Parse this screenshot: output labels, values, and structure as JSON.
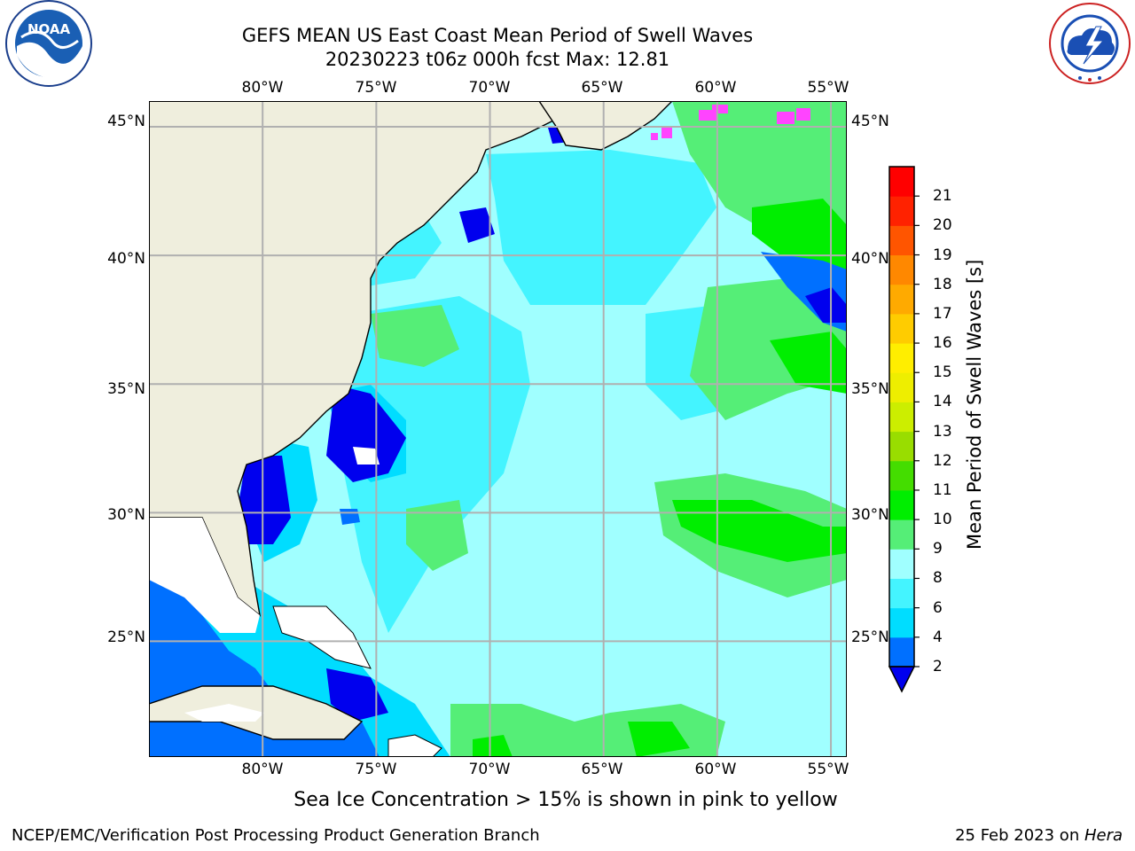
{
  "title": {
    "line1": "GEFS MEAN US East Coast Mean Period of Swell Waves",
    "line2": "20230223 t06z 000h fcst   Max: 12.81"
  },
  "map": {
    "lon_labels": [
      "80°W",
      "75°W",
      "70°W",
      "65°W",
      "60°W",
      "55°W"
    ],
    "lat_labels": [
      "45°N",
      "40°N",
      "35°N",
      "30°N",
      "25°N"
    ],
    "extent": {
      "lon": [
        -85,
        -54.3
      ],
      "lat": [
        20.5,
        46
      ]
    },
    "colors": {
      "land": "#efeedd",
      "grid": "#b0b0b0",
      "coast": "#000000",
      "nodata": "#ffffff"
    }
  },
  "colorbar": {
    "label": "Mean Period of Swell Waves [s]",
    "ticks": [
      "2",
      "4",
      "6",
      "8",
      "9",
      "10",
      "11",
      "12",
      "13",
      "14",
      "15",
      "16",
      "17",
      "18",
      "19",
      "20",
      "21"
    ],
    "colors": [
      "#0000ee",
      "#0070ff",
      "#00ddff",
      "#44f4ff",
      "#a0ffff",
      "#55ee77",
      "#00ee00",
      "#44dd00",
      "#99dd00",
      "#ccee00",
      "#eeee00",
      "#ffee00",
      "#ffcc00",
      "#ffaa00",
      "#ff8800",
      "#ff5500",
      "#ff2200",
      "#ff0000"
    ]
  },
  "sea_ice_note": "Sea Ice Concentration > 15% is shown in pink to yellow",
  "footer": {
    "left": "NCEP/EMC/Verification Post Processing Product Generation Branch",
    "right_prefix": "25 Feb 2023 on ",
    "right_machine": "Hera"
  },
  "logos": {
    "noaa": "NOAA",
    "nws": "NATIONAL WEATHER SERVICE"
  }
}
